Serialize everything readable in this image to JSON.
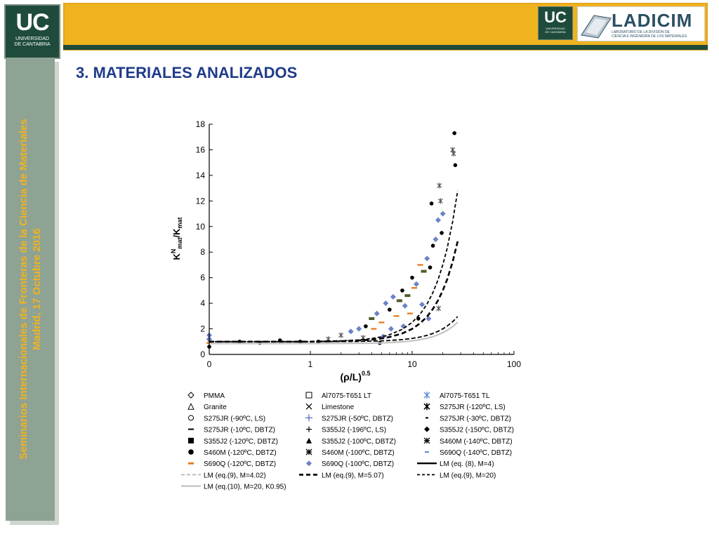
{
  "header": {
    "logo_left": {
      "main": "UC",
      "line1": "UNIVERSIDAD",
      "line2": "DE CANTABRIA"
    },
    "logo_right_uc": {
      "main": "UC",
      "line1": "UNIVERSIDAD",
      "line2": "DE CANTABRIA"
    },
    "logo_ladicim": {
      "word": "LADICIM",
      "sub1": "LABORATORIO DE LA DIVISIÓN DE",
      "sub2": "CIENCIA E INGENIERÍA DE LOS MATERIALES"
    },
    "colors": {
      "bar": "#f0b320",
      "dark_green": "#1e4b3b",
      "sidebar": "#8ea394"
    }
  },
  "sidebar": {
    "line1": "Seminarios Internacionales de Fronteras de la Ciencia de Materiales",
    "line2": "Madrid, 17 Octubre  2016"
  },
  "slide": {
    "title": "3. MATERIALES ANALIZADOS"
  },
  "chart_data": {
    "type": "scatter",
    "xscale": "symlog (linear 0–1, log 1–100)",
    "xlabel": "(ρ/L)",
    "xlabel_sup": "0.5",
    "ylabel": "KNmat/Kmat",
    "xticks": [
      "0",
      "1",
      "10",
      "100"
    ],
    "yticks": [
      "0",
      "2",
      "4",
      "6",
      "8",
      "10",
      "12",
      "14",
      "16",
      "18"
    ],
    "xlim": [
      0,
      100
    ],
    "ylim": [
      0,
      18
    ],
    "grid": false,
    "legend_position": "below-plot",
    "legend": [
      {
        "label": "PMMA",
        "marker": "diamond-open"
      },
      {
        "label": "Al7075-T651 LT",
        "marker": "square-open"
      },
      {
        "label": "Al7075-T651 TL",
        "marker": "asterisk-blue"
      },
      {
        "label": "Granite",
        "marker": "triangle-open"
      },
      {
        "label": "Limestone",
        "marker": "x"
      },
      {
        "label": "S275JR (-120ºC, LS)",
        "marker": "asterisk"
      },
      {
        "label": "S275JR (-90ºC, LS)",
        "marker": "circle-open"
      },
      {
        "label": "S275JR (-50ºC, DBTZ)",
        "marker": "plus-blue"
      },
      {
        "label": "S275JR (-30ºC, DBTZ)",
        "marker": "dash-short"
      },
      {
        "label": "S275JR (-10ºC, DBTZ)",
        "marker": "dash"
      },
      {
        "label": "S355J2 (-196ºC, LS)",
        "marker": "plus"
      },
      {
        "label": "S355J2 (-150ºC, DBTZ)",
        "marker": "diamond-filled"
      },
      {
        "label": "S355J2 (-120ºC, DBTZ)",
        "marker": "square-filled"
      },
      {
        "label": "S355J2 (-100ºC, DBTZ)",
        "marker": "triangle-filled"
      },
      {
        "label": "S460M (-140ºC, DBTZ)",
        "marker": "asterisk-box"
      },
      {
        "label": "S460M (-120ºC, DBTZ)",
        "marker": "circle-filled"
      },
      {
        "label": "S460M (-100ºC, DBTZ)",
        "marker": "asterisk-box"
      },
      {
        "label": "S690Q (-140ºC, DBTZ)",
        "marker": "dash-blue"
      },
      {
        "label": "S690Q (-120ºC, DBTZ)",
        "marker": "dash-orange"
      },
      {
        "label": "S690Q (-100ºC, DBTZ)",
        "marker": "diamond-blue"
      },
      {
        "label": "LM (eq. (8), M=4)",
        "marker": "line-solid"
      },
      {
        "label": "LM (eq.(9), M=4.02)",
        "marker": "line-dash-light"
      },
      {
        "label": "LM (eq.(9), M=5.07)",
        "marker": "line-dash-thick"
      },
      {
        "label": "LM (eq.(9), M=20)",
        "marker": "line-dash"
      },
      {
        "label": "LM (eq.(10), M=20, K0.95)",
        "marker": "line-solid-light"
      }
    ],
    "series": [
      {
        "label": "LM (eq.(9), M=5.07)",
        "x": [
          0,
          0.5,
          1,
          2,
          3,
          4,
          5,
          6,
          8,
          10,
          12,
          14,
          16,
          18,
          20,
          22,
          25,
          28
        ],
        "y": [
          1.0,
          1.0,
          1.0,
          1.04,
          1.09,
          1.16,
          1.25,
          1.36,
          1.64,
          2.0,
          2.44,
          2.96,
          3.56,
          4.24,
          5.0,
          5.84,
          7.25,
          8.84
        ]
      },
      {
        "label": "LM (eq.(9), M=20)",
        "x": [
          0,
          0.5,
          1,
          2,
          3,
          4,
          5,
          6,
          8,
          10,
          12,
          14,
          16,
          18,
          20,
          22,
          25,
          28
        ],
        "y": [
          1.0,
          1.0,
          1.0,
          1.06,
          1.13,
          1.24,
          1.38,
          1.54,
          1.96,
          2.5,
          3.16,
          3.94,
          4.84,
          5.86,
          7.0,
          8.26,
          10.4,
          12.8
        ]
      },
      {
        "label": "LM (eq. (8), M=4)",
        "x": [
          0,
          0.5,
          1,
          2,
          3,
          4,
          5,
          6,
          8,
          10,
          12,
          14,
          16,
          18,
          20,
          22,
          25,
          28
        ],
        "y": [
          1.0,
          1.0,
          1.0,
          1.01,
          1.02,
          1.04,
          1.06,
          1.09,
          1.16,
          1.25,
          1.36,
          1.49,
          1.64,
          1.81,
          2.0,
          2.21,
          2.56,
          2.96
        ]
      },
      {
        "label": "LM (eq.(10), M=20, K0.95)",
        "x": [
          0,
          0.5,
          1,
          2,
          3,
          4,
          5,
          6,
          8,
          10,
          12,
          14,
          16,
          18,
          20,
          22,
          25,
          28
        ],
        "y": [
          0.85,
          0.85,
          0.85,
          0.86,
          0.87,
          0.88,
          0.9,
          0.93,
          0.99,
          1.06,
          1.16,
          1.27,
          1.39,
          1.54,
          1.7,
          1.88,
          2.18,
          2.52
        ]
      }
    ],
    "points": [
      [
        0,
        1.0,
        "#555555"
      ],
      [
        0,
        1.2,
        "#6b83c7"
      ],
      [
        0,
        0.6,
        "#000000"
      ],
      [
        0,
        1.5,
        "#6b83c7"
      ],
      [
        0,
        0.9,
        "#e67e22"
      ],
      [
        0.3,
        1.0,
        "#000000"
      ],
      [
        0.5,
        0.9,
        "#000000"
      ],
      [
        0.7,
        1.1,
        "#000000"
      ],
      [
        0.9,
        1.0,
        "#000000"
      ],
      [
        1.2,
        1.0,
        "#000000"
      ],
      [
        1.5,
        1.2,
        "#555555"
      ],
      [
        2,
        1.5,
        "#555555"
      ],
      [
        2.5,
        1.8,
        "#6b83c7"
      ],
      [
        3,
        2.0,
        "#6b83c7"
      ],
      [
        3.5,
        2.2,
        "#000000"
      ],
      [
        4,
        2.8,
        "#4f5c2a"
      ],
      [
        4.5,
        3.2,
        "#6b83c7"
      ],
      [
        5,
        2.5,
        "#e67e22"
      ],
      [
        5.5,
        4.0,
        "#6b83c7"
      ],
      [
        6,
        3.5,
        "#000000"
      ],
      [
        6.5,
        4.5,
        "#6b83c7"
      ],
      [
        7,
        3.0,
        "#e67e22"
      ],
      [
        7.5,
        4.2,
        "#4f5c2a"
      ],
      [
        8,
        5.0,
        "#000000"
      ],
      [
        8.5,
        3.8,
        "#6b83c7"
      ],
      [
        9,
        4.6,
        "#4f5c2a"
      ],
      [
        10,
        6.0,
        "#000000"
      ],
      [
        10.5,
        5.2,
        "#e67e22"
      ],
      [
        11,
        5.5,
        "#6b83c7"
      ],
      [
        12,
        7.0,
        "#e67e22"
      ],
      [
        12.5,
        3.9,
        "#6b83c7"
      ],
      [
        13,
        6.5,
        "#4f5c2a"
      ],
      [
        14,
        7.5,
        "#6b83c7"
      ],
      [
        15,
        6.8,
        "#000000"
      ],
      [
        16,
        8.5,
        "#000000"
      ],
      [
        17,
        9.0,
        "#6b83c7"
      ],
      [
        18,
        10.5,
        "#6b83c7"
      ],
      [
        18.5,
        13.2,
        "#555555"
      ],
      [
        19,
        12.0,
        "#555555"
      ],
      [
        19.5,
        9.5,
        "#000000"
      ],
      [
        20,
        11.0,
        "#6b83c7"
      ],
      [
        15.5,
        11.8,
        "#000000"
      ],
      [
        25,
        16.0,
        "#555555"
      ],
      [
        25.5,
        15.7,
        "#555555"
      ],
      [
        26,
        17.3,
        "#000000"
      ],
      [
        26.5,
        14.8,
        "#000000"
      ],
      [
        8.2,
        2.2,
        "#6b83c7"
      ],
      [
        9.5,
        3.2,
        "#e67e22"
      ],
      [
        11.5,
        2.8,
        "#000000"
      ],
      [
        6.2,
        2.0,
        "#6b83c7"
      ],
      [
        5.2,
        1.4,
        "#6b83c7"
      ],
      [
        14.5,
        2.8,
        "#6b83c7"
      ],
      [
        18.2,
        3.6,
        "#555555"
      ],
      [
        4.2,
        2.0,
        "#e67e22"
      ],
      [
        3.3,
        1.3,
        "#555555"
      ],
      [
        4.8,
        0.9,
        "#000000"
      ]
    ]
  }
}
